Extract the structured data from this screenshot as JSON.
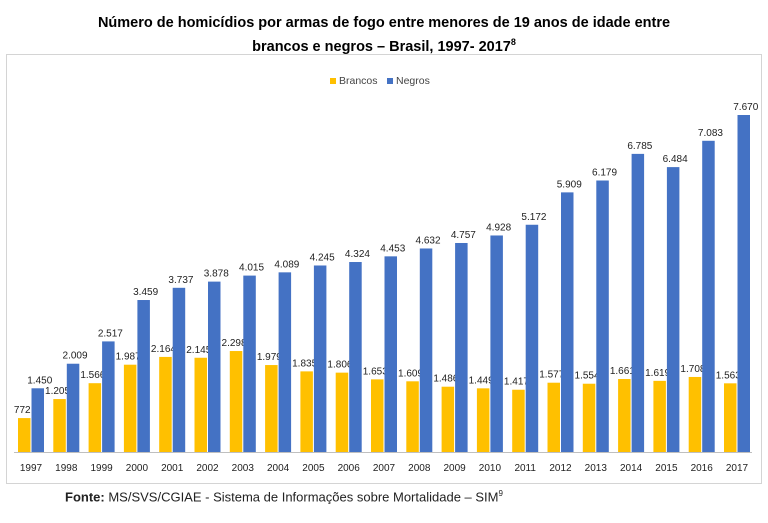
{
  "title": {
    "line1": "Número de homicídios por armas de fogo entre menores de 19 anos de idade entre",
    "line2": "brancos e negros – Brasil, 1997- 2017",
    "footnote": "8"
  },
  "source": {
    "label": "Fonte:",
    "text": " MS/SVS/CGIAE - Sistema de Informações sobre Mortalidade – SIM",
    "footnote": "9"
  },
  "chart_data": {
    "type": "bar",
    "categories": [
      "1997",
      "1998",
      "1999",
      "2000",
      "2001",
      "2002",
      "2003",
      "2004",
      "2005",
      "2006",
      "2007",
      "2008",
      "2009",
      "2010",
      "2011",
      "2012",
      "2013",
      "2014",
      "2015",
      "2016",
      "2017"
    ],
    "series": [
      {
        "name": "Brancos",
        "color": "#FFC000",
        "values": [
          772,
          1205,
          1566,
          1987,
          2164,
          2145,
          2298,
          1979,
          1835,
          1806,
          1653,
          1609,
          1486,
          1449,
          1417,
          1577,
          1554,
          1661,
          1619,
          1708,
          1563
        ],
        "labels": [
          "772",
          "1.205",
          "1.566",
          "1.987",
          "2.164",
          "2.145",
          "2.298",
          "1.979",
          "1.835",
          "1.806",
          "1.653",
          "1.609",
          "1.486",
          "1.449",
          "1.417",
          "1.577",
          "1.554",
          "1.661",
          "1.619",
          "1.708",
          "1.563"
        ]
      },
      {
        "name": "Negros",
        "color": "#4472C4",
        "values": [
          1450,
          2009,
          2517,
          3459,
          3737,
          3878,
          4015,
          4089,
          4245,
          4324,
          4453,
          4632,
          4757,
          4928,
          5172,
          5909,
          6179,
          6785,
          6484,
          7083,
          7670
        ],
        "labels": [
          "1.450",
          "2.009",
          "2.517",
          "3.459",
          "3.737",
          "3.878",
          "4.015",
          "4.089",
          "4.245",
          "4.324",
          "4.453",
          "4.632",
          "4.757",
          "4.928",
          "5.172",
          "5.909",
          "6.179",
          "6.785",
          "6.484",
          "7.083",
          "7.670"
        ]
      }
    ],
    "legend_position": "top-center",
    "grid": false
  }
}
